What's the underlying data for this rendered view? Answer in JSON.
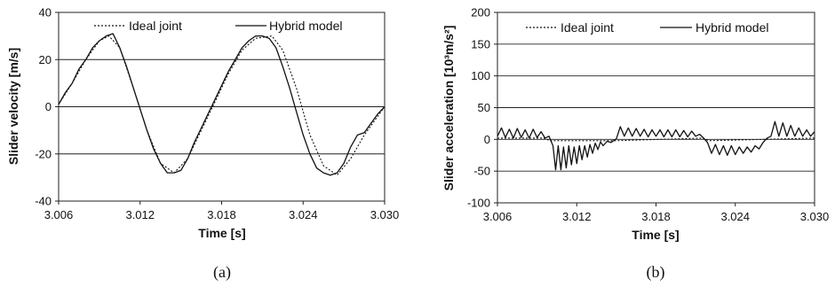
{
  "chart_data": [
    {
      "type": "line",
      "caption": "(a)",
      "xlabel": "Time [s]",
      "ylabel": "Slider velocity [m/s]",
      "xlim": [
        3.006,
        3.03
      ],
      "ylim": [
        -40,
        40
      ],
      "xticks": [
        "3.006",
        "3.012",
        "3.018",
        "3.024",
        "3.030"
      ],
      "yticks": [
        "-40",
        "-20",
        "0",
        "20",
        "40"
      ],
      "grid": "horizontal",
      "legend_position": "top",
      "series": [
        {
          "name": "Ideal joint",
          "style": "dotted",
          "x": [
            3.006,
            3.007,
            3.008,
            3.009,
            3.0097,
            3.0105,
            3.0115,
            3.0125,
            3.0135,
            3.0145,
            3.0155,
            3.0165,
            3.0175,
            3.0185,
            3.0195,
            3.0205,
            3.0217,
            3.0225,
            3.0235,
            3.0245,
            3.0255,
            3.0265,
            3.0275,
            3.0285,
            3.0295,
            3.03
          ],
          "y": [
            1,
            10,
            20,
            28,
            30,
            25,
            8,
            -10,
            -24,
            -28,
            -22,
            -10,
            2,
            14,
            24,
            29,
            30,
            24,
            8,
            -12,
            -25,
            -29,
            -22,
            -12,
            -4,
            0
          ]
        },
        {
          "name": "Hybrid model",
          "style": "solid",
          "x": [
            3.006,
            3.0065,
            3.007,
            3.0075,
            3.008,
            3.0085,
            3.009,
            3.0095,
            3.01,
            3.0105,
            3.011,
            3.0115,
            3.012,
            3.0125,
            3.013,
            3.0135,
            3.014,
            3.0145,
            3.015,
            3.0155,
            3.016,
            3.0165,
            3.017,
            3.0175,
            3.018,
            3.0185,
            3.019,
            3.0195,
            3.02,
            3.0205,
            3.021,
            3.0215,
            3.022,
            3.0225,
            3.023,
            3.0235,
            3.024,
            3.0245,
            3.025,
            3.0255,
            3.026,
            3.0265,
            3.027,
            3.0275,
            3.028,
            3.0285,
            3.029,
            3.0295,
            3.03
          ],
          "y": [
            1,
            6,
            10,
            16,
            20,
            25,
            28,
            30,
            31,
            25,
            17,
            8,
            -1,
            -10,
            -18,
            -24,
            -28,
            -28,
            -27,
            -22,
            -15,
            -9,
            -3,
            3,
            9,
            15,
            20,
            25,
            28,
            30,
            30,
            29,
            25,
            17,
            8,
            -2,
            -12,
            -20,
            -26,
            -28,
            -29,
            -28,
            -24,
            -17,
            -12,
            -11,
            -7,
            -3,
            0
          ]
        }
      ]
    },
    {
      "type": "line",
      "caption": "(b)",
      "xlabel": "Time [s]",
      "ylabel": "Slider acceleration [10³m/s²]",
      "xlim": [
        3.006,
        3.03
      ],
      "ylim": [
        -100,
        200
      ],
      "xticks": [
        "3.006",
        "3.012",
        "3.018",
        "3.024",
        "3.030"
      ],
      "yticks": [
        "-100",
        "-50",
        "0",
        "50",
        "100",
        "150",
        "200"
      ],
      "grid": "horizontal",
      "legend_position": "top",
      "series": [
        {
          "name": "Ideal joint",
          "style": "dotted",
          "x": [
            3.006,
            3.0095,
            3.01,
            3.015,
            3.0215,
            3.022,
            3.03
          ],
          "y": [
            2,
            2,
            -2,
            -2,
            2,
            -2,
            2
          ]
        },
        {
          "name": "Hybrid model",
          "style": "solid",
          "x": [
            3.006,
            3.0063,
            3.0066,
            3.0069,
            3.0072,
            3.0075,
            3.0078,
            3.0081,
            3.0084,
            3.0087,
            3.009,
            3.0093,
            3.0096,
            3.0099,
            3.0102,
            3.0104,
            3.0106,
            3.0108,
            3.011,
            3.0112,
            3.0114,
            3.0116,
            3.0118,
            3.012,
            3.0122,
            3.0124,
            3.0126,
            3.0128,
            3.013,
            3.0132,
            3.0134,
            3.0136,
            3.0138,
            3.014,
            3.0143,
            3.0146,
            3.015,
            3.0153,
            3.0156,
            3.0159,
            3.0162,
            3.0165,
            3.0168,
            3.0171,
            3.0174,
            3.0177,
            3.018,
            3.0183,
            3.0186,
            3.0189,
            3.0192,
            3.0195,
            3.0198,
            3.0201,
            3.0204,
            3.0207,
            3.021,
            3.0213,
            3.0216,
            3.0219,
            3.0222,
            3.0225,
            3.0228,
            3.0231,
            3.0234,
            3.0237,
            3.024,
            3.0243,
            3.0246,
            3.0249,
            3.0252,
            3.0255,
            3.0258,
            3.0261,
            3.0264,
            3.0267,
            3.027,
            3.0273,
            3.0276,
            3.0279,
            3.0282,
            3.0285,
            3.0288,
            3.0291,
            3.0294,
            3.0297,
            3.03
          ],
          "y": [
            5,
            18,
            3,
            16,
            2,
            17,
            3,
            15,
            2,
            16,
            3,
            12,
            2,
            5,
            -10,
            -48,
            -10,
            -48,
            -12,
            -45,
            -10,
            -40,
            -12,
            -38,
            -10,
            -32,
            -10,
            -28,
            -8,
            -22,
            -6,
            -16,
            -4,
            -10,
            -3,
            -5,
            1,
            20,
            5,
            18,
            5,
            17,
            5,
            16,
            4,
            15,
            5,
            15,
            4,
            15,
            4,
            15,
            4,
            14,
            4,
            13,
            5,
            8,
            2,
            -5,
            -22,
            -8,
            -24,
            -10,
            -25,
            -10,
            -24,
            -12,
            -22,
            -12,
            -20,
            -10,
            -15,
            -5,
            2,
            5,
            28,
            5,
            26,
            5,
            22,
            5,
            18,
            5,
            15,
            5,
            12
          ]
        }
      ]
    }
  ]
}
